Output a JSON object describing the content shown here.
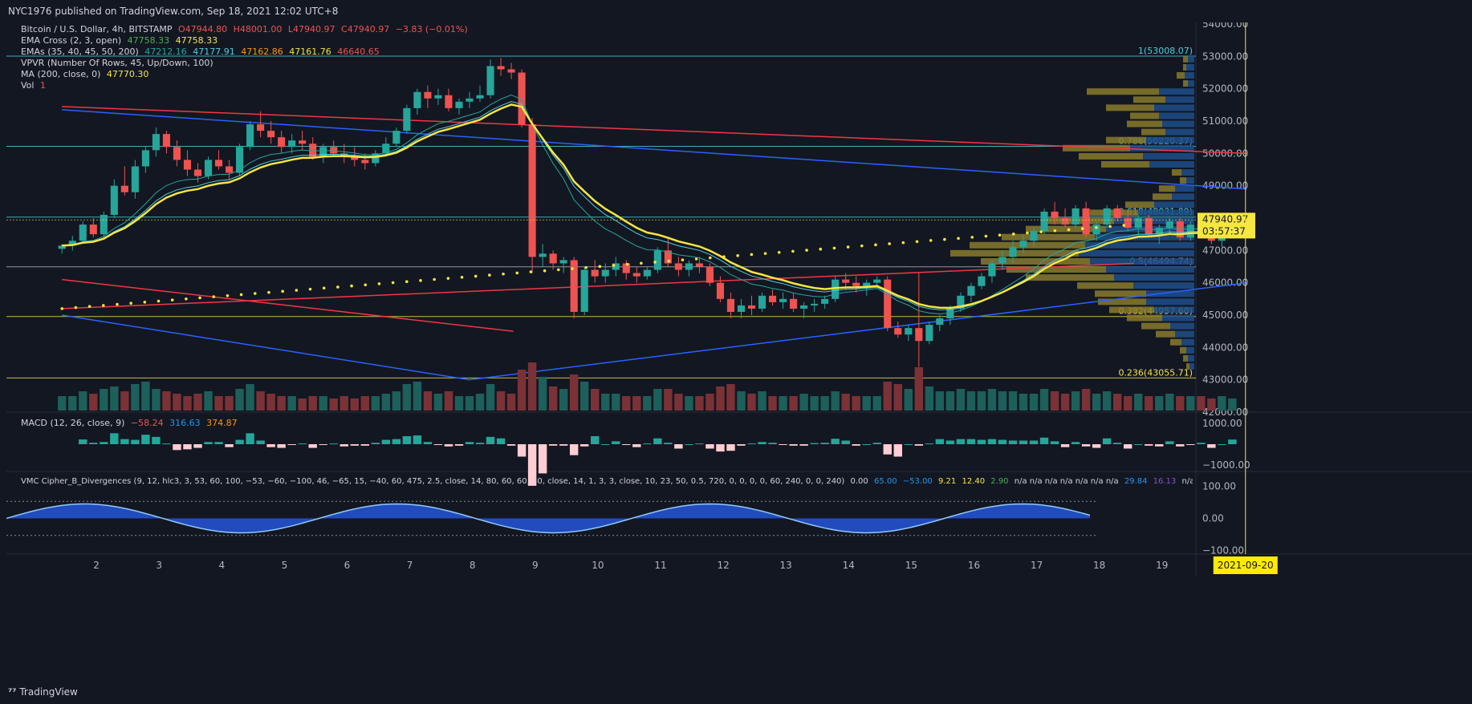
{
  "header": {
    "published": "NYC1976 published on TradingView.com, Sep 18, 2021 12:02 UTC+8"
  },
  "footer": {
    "brand": "TradingView"
  },
  "legend": {
    "symbol": "Bitcoin / U.S. Dollar, 4h, BITSTAMP",
    "ohlc": {
      "o": "O47944.80",
      "h": "H48001.00",
      "l": "L47940.97",
      "c": "C47940.97",
      "chg": "−3.83 (−0.01%)"
    },
    "ema_cross": {
      "label": "EMA Cross (2, 3, open)",
      "v1": "47758.33",
      "v2": "47758.33"
    },
    "emas": {
      "label": "EMAs (35, 40, 45, 50, 200)",
      "v1": "47212.16",
      "v2": "47177.91",
      "v3": "47162.86",
      "v4": "47161.76",
      "v5": "46640.65"
    },
    "vpvr": {
      "label": "VPVR (Number Of Rows, 45, Up/Down, 100)"
    },
    "ma": {
      "label": "MA (200, close, 0)",
      "v1": "47770.30"
    },
    "vol": {
      "label": "Vol",
      "v1": "1"
    },
    "macd": {
      "label": "MACD (12, 26, close, 9)",
      "v1": "−58.24",
      "v2": "316.63",
      "v3": "374.87"
    },
    "vmc": {
      "label": "VMC Cipher_B_Divergences (9, 12, hlc3, 3, 53, 60, 100, −53, −60, −100, 46, −65, 15, −40, 60, 475, 2.5, close, 14, 80, 60, 60, 30, close, 14, 1, 3, 3, close, 10, 23, 50, 0.5, 720, 0, 0, 0, 0, 60, 240, 0, 0, 240)",
      "v1": "0.00",
      "v2": "65.00",
      "v3": "−53.00",
      "v4": "9.21",
      "v5": "12.40",
      "v6": "2.90",
      "na": "n/a  n/a  n/a  n/a  n/a  n/a  n/a",
      "v7": "29.84",
      "v8": "16.13",
      "na2": "n/a  n/a  n/a..."
    }
  },
  "colors": {
    "bg": "#131722",
    "up": "#26a69a",
    "down": "#ef5350",
    "grid": "#2a2e39",
    "yellow": "#f5e642",
    "blue": "#2962ff",
    "red": "#f23645",
    "vp_up": "#1e4f8a",
    "vp_down": "#8a7a2c"
  },
  "price_axis": {
    "labels": [
      "54000.00",
      "53000.00",
      "52000.00",
      "51000.00",
      "50000.00",
      "49000.00",
      "48000.00",
      "47000.00",
      "46000.00",
      "45000.00",
      "44000.00",
      "43000.00",
      "42000.00"
    ],
    "current": "47940.97",
    "countdown": "03:57:37"
  },
  "macd_axis": {
    "labels": [
      "1000.00",
      "−1000.00"
    ]
  },
  "vmc_axis": {
    "labels": [
      "100.00",
      "0.00",
      "−100.00"
    ]
  },
  "time_axis": {
    "labels": [
      "2",
      "3",
      "4",
      "5",
      "6",
      "7",
      "8",
      "9",
      "10",
      "11",
      "12",
      "13",
      "14",
      "15",
      "16",
      "17",
      "18",
      "19"
    ],
    "cursor": "2021-09-20"
  },
  "fib": [
    {
      "label": "1(53008.07)",
      "price": 53008.07
    },
    {
      "label": "0.786(50220.37)",
      "price": 50220.37
    },
    {
      "label": "0.618(48031.89)",
      "price": 48031.89
    },
    {
      "label": "0.5(46494.74)",
      "price": 46494.74
    },
    {
      "label": "0.382(44957.60)",
      "price": 44957.6
    },
    {
      "label": "0.236(43055.71)",
      "price": 43055.71
    }
  ],
  "chart_data": {
    "type": "candlestick",
    "title": "Bitcoin / U.S. Dollar, 4h, BITSTAMP",
    "ylim": [
      42000,
      54000
    ],
    "x_start_day": 1.4,
    "bar_interval_days": 0.1667,
    "ohlc": [
      [
        47050,
        47200,
        46900,
        47150
      ],
      [
        47150,
        47450,
        47000,
        47300
      ],
      [
        47300,
        47900,
        47200,
        47800
      ],
      [
        47800,
        48000,
        47400,
        47500
      ],
      [
        47500,
        48200,
        47400,
        48100
      ],
      [
        48100,
        49200,
        48000,
        49000
      ],
      [
        49000,
        49600,
        48700,
        48800
      ],
      [
        48800,
        49800,
        48600,
        49600
      ],
      [
        49600,
        50200,
        49400,
        50100
      ],
      [
        50100,
        50800,
        49900,
        50600
      ],
      [
        50600,
        50700,
        50000,
        50200
      ],
      [
        50200,
        50400,
        49600,
        49800
      ],
      [
        49800,
        50100,
        49300,
        49500
      ],
      [
        49500,
        49700,
        49100,
        49300
      ],
      [
        49300,
        49900,
        49200,
        49800
      ],
      [
        49800,
        50100,
        49500,
        49600
      ],
      [
        49600,
        49800,
        49200,
        49400
      ],
      [
        49400,
        50300,
        49300,
        50200
      ],
      [
        50200,
        51000,
        50100,
        50900
      ],
      [
        50900,
        51300,
        50500,
        50700
      ],
      [
        50700,
        51000,
        50300,
        50500
      ],
      [
        50500,
        50700,
        50000,
        50200
      ],
      [
        50200,
        50600,
        50000,
        50400
      ],
      [
        50400,
        50700,
        50100,
        50300
      ],
      [
        50300,
        50500,
        49800,
        49900
      ],
      [
        49900,
        50300,
        49700,
        50200
      ],
      [
        50200,
        50400,
        49900,
        50000
      ],
      [
        50000,
        50300,
        49700,
        49900
      ],
      [
        49900,
        50200,
        49600,
        49800
      ],
      [
        49800,
        50000,
        49500,
        49700
      ],
      [
        49700,
        50100,
        49600,
        50000
      ],
      [
        50000,
        50500,
        49900,
        50300
      ],
      [
        50300,
        50800,
        50200,
        50700
      ],
      [
        50700,
        51500,
        50600,
        51400
      ],
      [
        51400,
        52000,
        51200,
        51900
      ],
      [
        51900,
        52100,
        51400,
        51700
      ],
      [
        51700,
        52000,
        51500,
        51800
      ],
      [
        51800,
        52000,
        51300,
        51400
      ],
      [
        51400,
        51700,
        51200,
        51600
      ],
      [
        51600,
        51900,
        51400,
        51700
      ],
      [
        51700,
        52100,
        51600,
        51800
      ],
      [
        51800,
        52900,
        51700,
        52700
      ],
      [
        52700,
        52950,
        52400,
        52600
      ],
      [
        52600,
        52800,
        52300,
        52500
      ],
      [
        52500,
        52600,
        50800,
        50900
      ],
      [
        50900,
        51100,
        46300,
        46800
      ],
      [
        46800,
        47200,
        46500,
        46900
      ],
      [
        46900,
        47000,
        46400,
        46600
      ],
      [
        46600,
        46800,
        46300,
        46700
      ],
      [
        46700,
        46800,
        44900,
        45100
      ],
      [
        45100,
        46500,
        45000,
        46400
      ],
      [
        46400,
        46700,
        46000,
        46200
      ],
      [
        46200,
        46600,
        46000,
        46400
      ],
      [
        46400,
        46800,
        46200,
        46600
      ],
      [
        46600,
        46700,
        46100,
        46300
      ],
      [
        46300,
        46500,
        46000,
        46200
      ],
      [
        46200,
        46500,
        46100,
        46400
      ],
      [
        46400,
        47100,
        46300,
        47000
      ],
      [
        47000,
        47400,
        46500,
        46600
      ],
      [
        46600,
        46800,
        46200,
        46400
      ],
      [
        46400,
        46700,
        46200,
        46600
      ],
      [
        46600,
        46800,
        46300,
        46500
      ],
      [
        46500,
        46600,
        45900,
        46000
      ],
      [
        46000,
        46200,
        45400,
        45500
      ],
      [
        45500,
        45700,
        44900,
        45100
      ],
      [
        45100,
        45500,
        44900,
        45300
      ],
      [
        45300,
        45600,
        45000,
        45200
      ],
      [
        45200,
        45700,
        45100,
        45600
      ],
      [
        45600,
        45800,
        45300,
        45400
      ],
      [
        45400,
        45700,
        45200,
        45500
      ],
      [
        45500,
        45700,
        45100,
        45200
      ],
      [
        45200,
        45400,
        44900,
        45300
      ],
      [
        45300,
        45500,
        45100,
        45350
      ],
      [
        45350,
        45600,
        45200,
        45500
      ],
      [
        45500,
        46200,
        45400,
        46100
      ],
      [
        46100,
        46300,
        45800,
        46000
      ],
      [
        46000,
        46200,
        45700,
        45900
      ],
      [
        45900,
        46100,
        45600,
        46000
      ],
      [
        46000,
        46200,
        45800,
        46100
      ],
      [
        46100,
        46200,
        44500,
        44600
      ],
      [
        44600,
        44800,
        44300,
        44400
      ],
      [
        44400,
        44700,
        44200,
        44600
      ],
      [
        44600,
        46300,
        43400,
        44200
      ],
      [
        44200,
        44800,
        44100,
        44700
      ],
      [
        44700,
        45000,
        44500,
        44900
      ],
      [
        44900,
        45300,
        44700,
        45200
      ],
      [
        45200,
        45700,
        45100,
        45600
      ],
      [
        45600,
        46000,
        45400,
        45900
      ],
      [
        45900,
        46300,
        45800,
        46200
      ],
      [
        46200,
        46700,
        46000,
        46600
      ],
      [
        46600,
        47000,
        46400,
        46800
      ],
      [
        46800,
        47300,
        46600,
        47100
      ],
      [
        47100,
        47500,
        46900,
        47300
      ],
      [
        47300,
        47700,
        47100,
        47600
      ],
      [
        47600,
        48300,
        47500,
        48200
      ],
      [
        48200,
        48500,
        47800,
        48000
      ],
      [
        48000,
        48300,
        47700,
        47800
      ],
      [
        47800,
        48400,
        47700,
        48300
      ],
      [
        48300,
        48500,
        47400,
        47500
      ],
      [
        47500,
        47900,
        47300,
        47800
      ],
      [
        47800,
        48400,
        47700,
        48300
      ],
      [
        48300,
        48400,
        47900,
        48000
      ],
      [
        48000,
        48200,
        47600,
        47700
      ],
      [
        47700,
        48100,
        47500,
        48000
      ],
      [
        48000,
        48100,
        47400,
        47500
      ],
      [
        47500,
        47800,
        47200,
        47700
      ],
      [
        47700,
        48000,
        47500,
        47900
      ],
      [
        47900,
        48000,
        47300,
        47400
      ],
      [
        47400,
        47900,
        47300,
        47800
      ],
      [
        47800,
        48000,
        47500,
        47600
      ],
      [
        47600,
        47800,
        47200,
        47300
      ],
      [
        47300,
        47700,
        47100,
        47600
      ],
      [
        47600,
        48000,
        47500,
        47940
      ]
    ],
    "volume_scale": [
      0.3,
      0.3,
      0.4,
      0.35,
      0.45,
      0.5,
      0.4,
      0.55,
      0.6,
      0.45,
      0.4,
      0.35,
      0.3,
      0.35,
      0.4,
      0.3,
      0.3,
      0.45,
      0.55,
      0.4,
      0.35,
      0.3,
      0.3,
      0.25,
      0.3,
      0.3,
      0.25,
      0.3,
      0.25,
      0.3,
      0.3,
      0.35,
      0.4,
      0.55,
      0.6,
      0.4,
      0.35,
      0.4,
      0.3,
      0.3,
      0.35,
      0.55,
      0.4,
      0.35,
      0.85,
      1.0,
      0.7,
      0.5,
      0.45,
      0.75,
      0.6,
      0.45,
      0.35,
      0.35,
      0.3,
      0.3,
      0.3,
      0.45,
      0.45,
      0.35,
      0.3,
      0.3,
      0.35,
      0.5,
      0.55,
      0.4,
      0.35,
      0.4,
      0.3,
      0.3,
      0.3,
      0.35,
      0.3,
      0.3,
      0.4,
      0.35,
      0.3,
      0.3,
      0.3,
      0.6,
      0.55,
      0.45,
      0.9,
      0.5,
      0.4,
      0.4,
      0.45,
      0.4,
      0.4,
      0.45,
      0.4,
      0.4,
      0.35,
      0.35,
      0.45,
      0.4,
      0.35,
      0.4,
      0.45,
      0.35,
      0.4,
      0.35,
      0.3,
      0.35,
      0.3,
      0.3,
      0.35,
      0.3,
      0.3,
      0.3,
      0.25,
      0.3,
      0.25
    ],
    "ma200_dots": {
      "from_day": 1.4,
      "from_price": 45200,
      "to_day": 18.5,
      "to_price": 47800
    },
    "vpvr_rows": [
      {
        "price": 52900,
        "up": 0.04,
        "down": 0.03
      },
      {
        "price": 52650,
        "up": 0.05,
        "down": 0.02
      },
      {
        "price": 52400,
        "up": 0.06,
        "down": 0.05
      },
      {
        "price": 52150,
        "up": 0.04,
        "down": 0.03
      },
      {
        "price": 51900,
        "up": 0.22,
        "down": 0.45
      },
      {
        "price": 51650,
        "up": 0.18,
        "down": 0.2
      },
      {
        "price": 51400,
        "up": 0.25,
        "down": 0.3
      },
      {
        "price": 51150,
        "up": 0.22,
        "down": 0.18
      },
      {
        "price": 50900,
        "up": 0.2,
        "down": 0.22
      },
      {
        "price": 50650,
        "up": 0.18,
        "down": 0.15
      },
      {
        "price": 50400,
        "up": 0.3,
        "down": 0.25
      },
      {
        "price": 50150,
        "up": 0.4,
        "down": 0.42
      },
      {
        "price": 49900,
        "up": 0.32,
        "down": 0.4
      },
      {
        "price": 49650,
        "up": 0.28,
        "down": 0.3
      },
      {
        "price": 49400,
        "up": 0.08,
        "down": 0.06
      },
      {
        "price": 49150,
        "up": 0.05,
        "down": 0.04
      },
      {
        "price": 48900,
        "up": 0.12,
        "down": 0.1
      },
      {
        "price": 48650,
        "up": 0.14,
        "down": 0.12
      },
      {
        "price": 48400,
        "up": 0.25,
        "down": 0.18
      },
      {
        "price": 48150,
        "up": 0.35,
        "down": 0.3
      },
      {
        "price": 47900,
        "up": 0.5,
        "down": 0.45
      },
      {
        "price": 47650,
        "up": 0.55,
        "down": 0.5
      },
      {
        "price": 47400,
        "up": 0.62,
        "down": 0.58
      },
      {
        "price": 47150,
        "up": 0.68,
        "down": 0.72
      },
      {
        "price": 46900,
        "up": 0.72,
        "down": 0.8
      },
      {
        "price": 46650,
        "up": 0.65,
        "down": 0.68
      },
      {
        "price": 46400,
        "up": 0.55,
        "down": 0.62
      },
      {
        "price": 46150,
        "up": 0.5,
        "down": 0.55
      },
      {
        "price": 45900,
        "up": 0.38,
        "down": 0.35
      },
      {
        "price": 45650,
        "up": 0.3,
        "down": 0.32
      },
      {
        "price": 45400,
        "up": 0.3,
        "down": 0.3
      },
      {
        "price": 45150,
        "up": 0.25,
        "down": 0.28
      },
      {
        "price": 44900,
        "up": 0.2,
        "down": 0.22
      },
      {
        "price": 44650,
        "up": 0.15,
        "down": 0.18
      },
      {
        "price": 44400,
        "up": 0.12,
        "down": 0.12
      },
      {
        "price": 44150,
        "up": 0.08,
        "down": 0.07
      },
      {
        "price": 43900,
        "up": 0.05,
        "down": 0.04
      },
      {
        "price": 43650,
        "up": 0.04,
        "down": 0.03
      },
      {
        "price": 43400,
        "up": 0.03,
        "down": 0.02
      }
    ],
    "trendlines": [
      {
        "name": "blue-resistance",
        "color": "#2962ff",
        "p1": [
          1.4,
          51350
        ],
        "p2": [
          20.3,
          48900
        ]
      },
      {
        "name": "red-resistance",
        "color": "#f23645",
        "p1": [
          1.4,
          51450
        ],
        "p2": [
          20.3,
          50000
        ]
      },
      {
        "name": "blue-support",
        "color": "#2962ff",
        "p1": [
          7.9,
          43000
        ],
        "p2": [
          20.3,
          46000
        ]
      },
      {
        "name": "blue-lower",
        "color": "#2962ff",
        "p1": [
          1.4,
          45000
        ],
        "p2": [
          7.9,
          43000
        ]
      },
      {
        "name": "red-lower",
        "color": "#f23645",
        "p1": [
          1.4,
          46100
        ],
        "p2": [
          8.6,
          44500
        ]
      },
      {
        "name": "red-ma",
        "color": "#f23645",
        "p1": [
          1.4,
          45200
        ],
        "p2": [
          18.5,
          46600
        ]
      }
    ]
  }
}
